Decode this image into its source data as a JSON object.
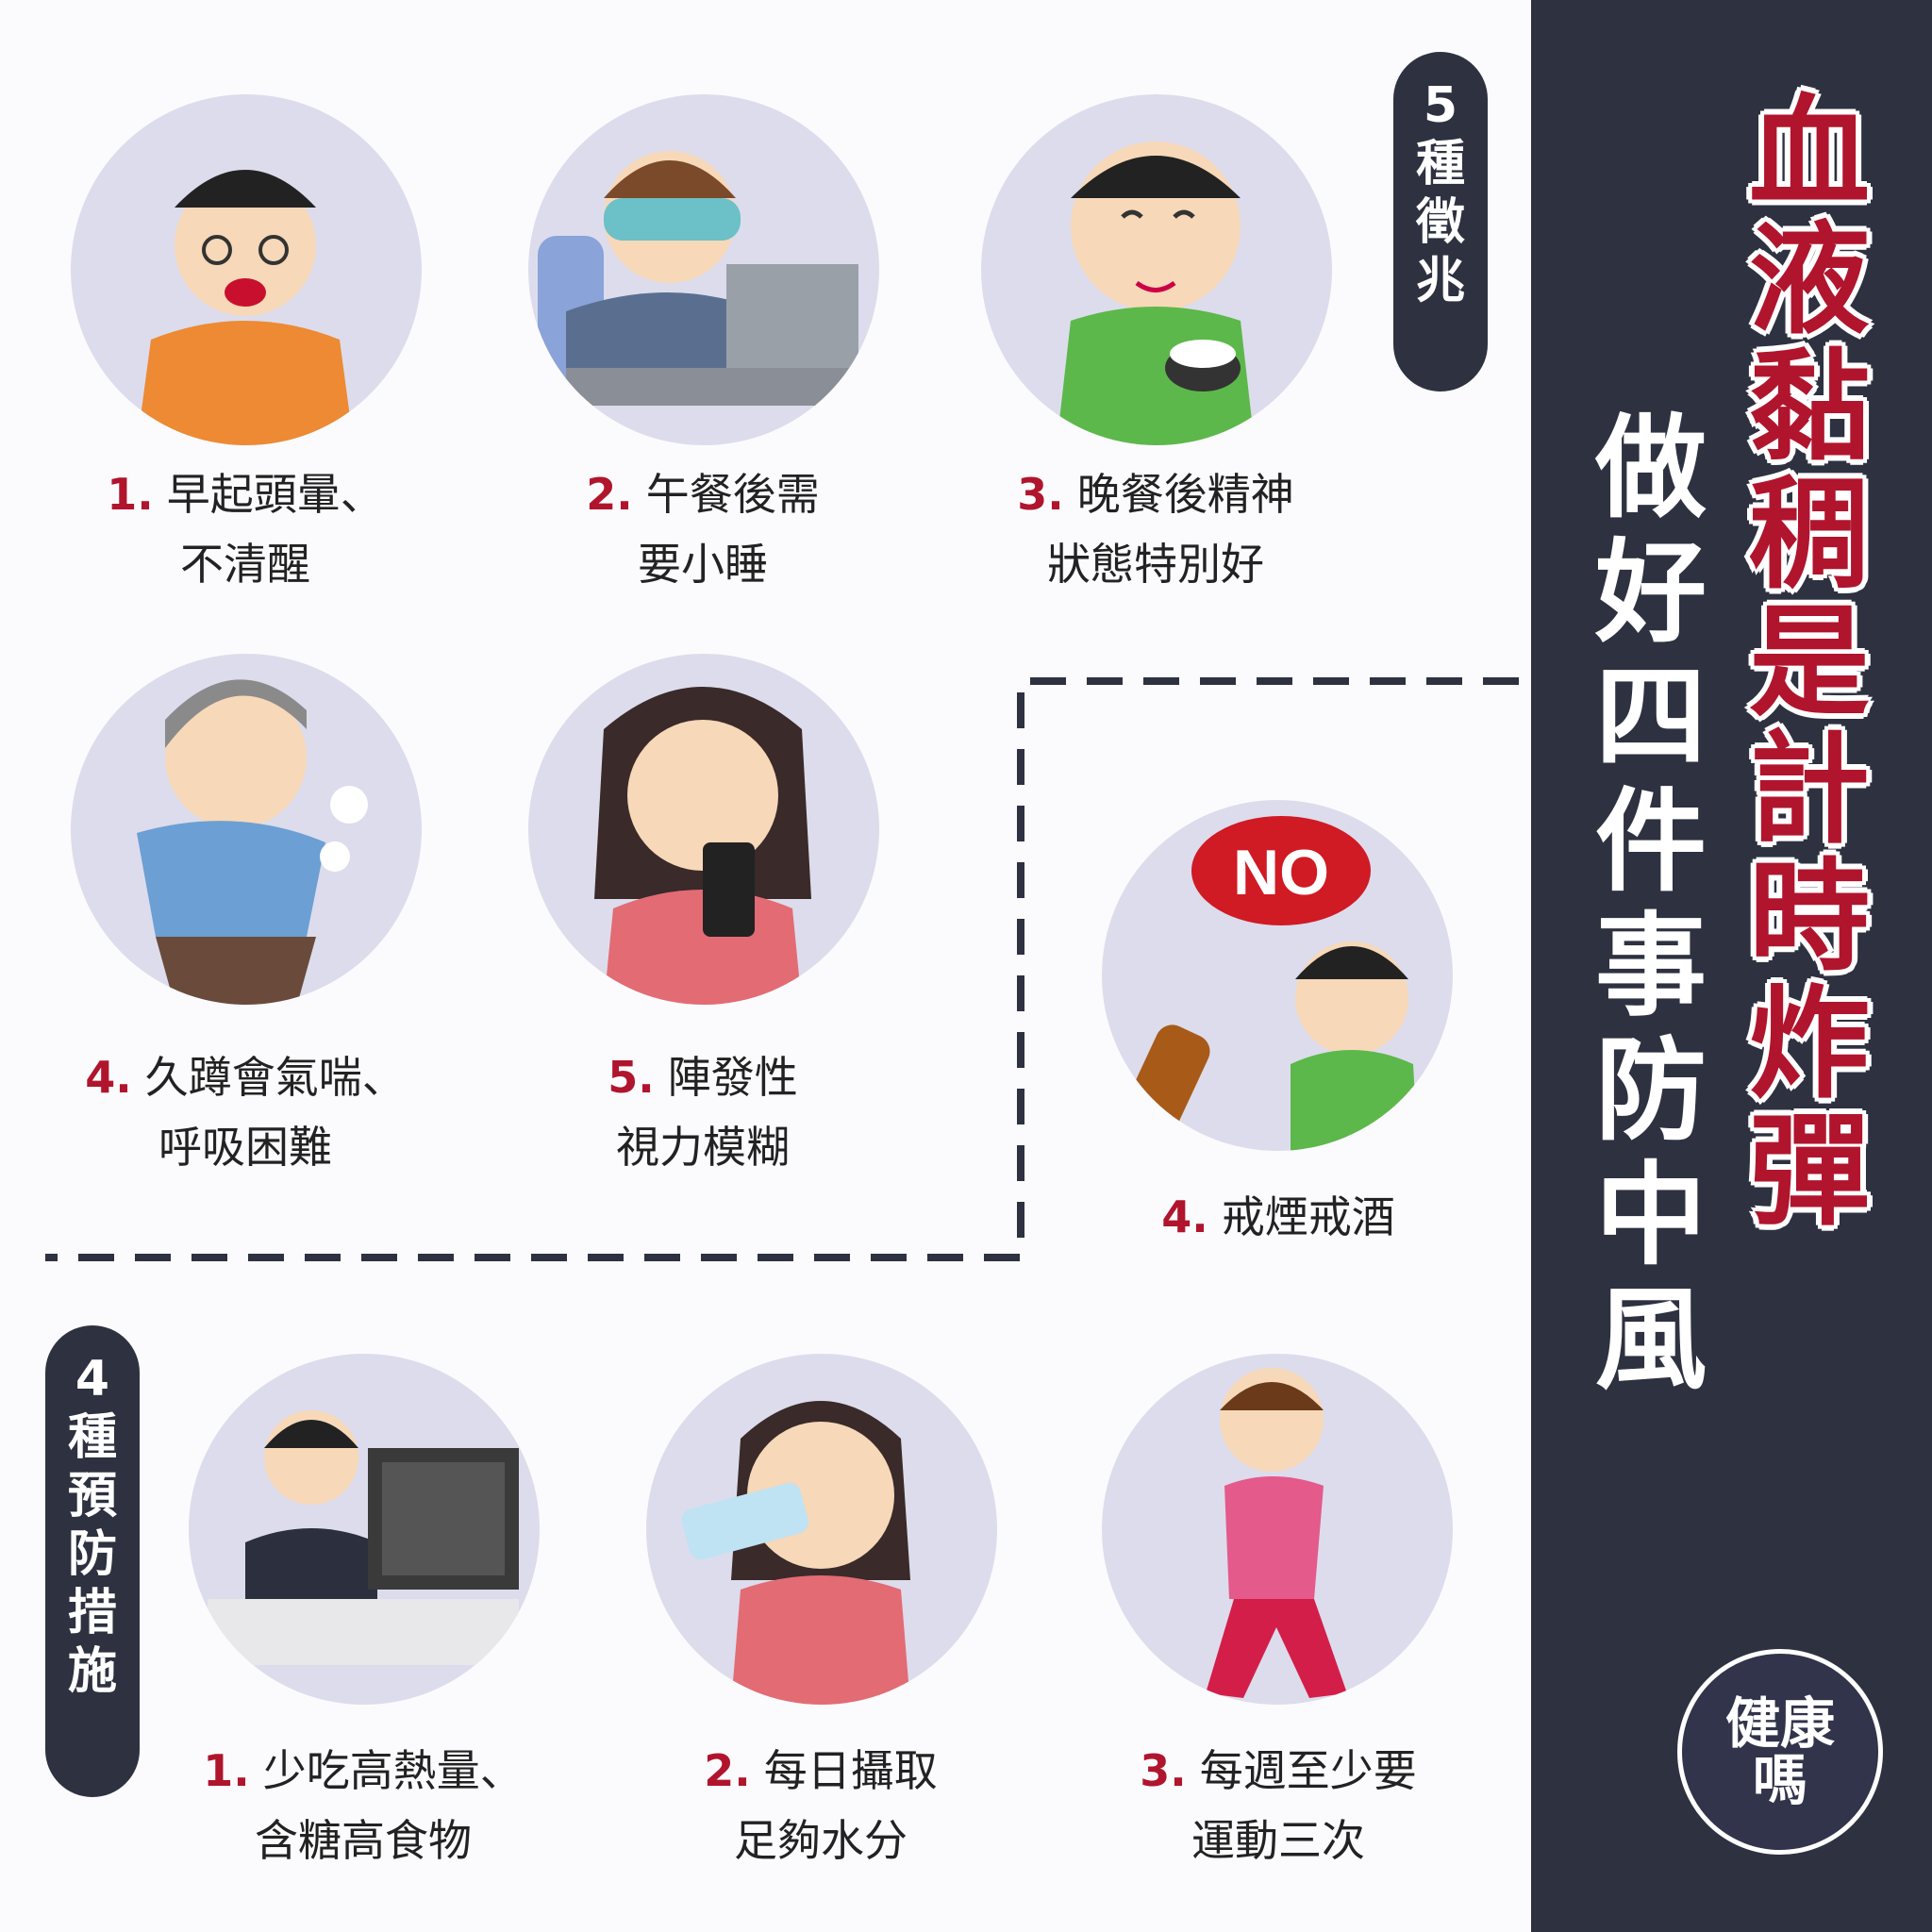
{
  "title": {
    "main": "血液黏稠是計時炸彈",
    "sub": "做好四件事防中風"
  },
  "symptoms_badge": "5種徵兆",
  "prevention_badge": "4種預防措施",
  "symptoms": [
    {
      "num": "1.",
      "line1": "早起頭暈、",
      "line2": "不清醒"
    },
    {
      "num": "2.",
      "line1": "午餐後需",
      "line2": "要小睡"
    },
    {
      "num": "3.",
      "line1": "晚餐後精神",
      "line2": "狀態特別好"
    },
    {
      "num": "4.",
      "line1": "久蹲會氣喘、",
      "line2": "呼吸困難"
    },
    {
      "num": "5.",
      "line1": "陣發性",
      "line2": "視力模糊"
    }
  ],
  "prevention": [
    {
      "num": "1.",
      "line1": "少吃高熱量、",
      "line2": "含糖高食物"
    },
    {
      "num": "2.",
      "line1": "每日攝取",
      "line2": "足夠水分"
    },
    {
      "num": "3.",
      "line1": "每週至少要",
      "line2": "運動三次"
    },
    {
      "num": "4.",
      "line1": "戒煙戒酒",
      "line2": ""
    }
  ],
  "no_bubble": "NO",
  "logo": {
    "line1": "健康",
    "line2": "嗎"
  },
  "colors": {
    "accent": "#b0152d",
    "sidebar": "#2e3140",
    "circle": "#dcdcec"
  }
}
